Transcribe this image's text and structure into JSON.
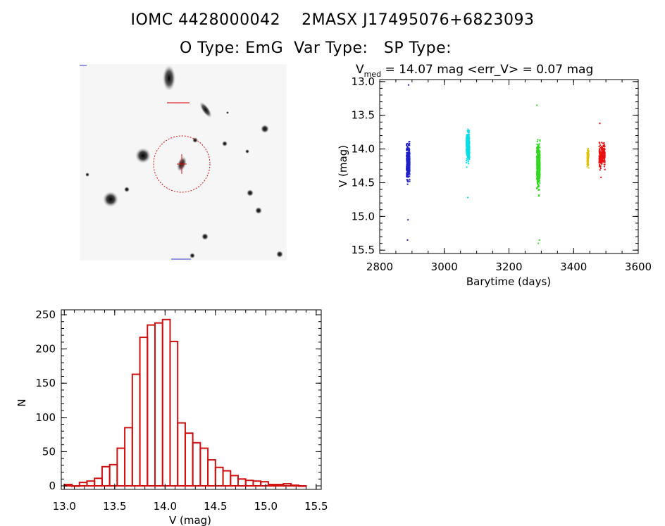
{
  "header": {
    "title_line1": "IOMC 4428000042    2MASX J17495076+6823093",
    "title_line2": "O Type: EmG  Var Type:   SP Type:"
  },
  "colors": {
    "blue": "#2020c8",
    "cyan": "#00e0e8",
    "green": "#30d820",
    "yellow": "#e0c000",
    "red": "#e81010",
    "hist": "#d01010"
  },
  "chart_data": [
    {
      "type": "scatter",
      "title_parts": {
        "v": "V",
        "sub": "med",
        "rest": " = 14.07 mag <err_V> = 0.07 mag"
      },
      "xlabel": "Barytime (days)",
      "ylabel": "V (mag)",
      "xlim": [
        2800,
        3600
      ],
      "ylim": [
        15.55,
        12.97
      ],
      "xticks": [
        "2800",
        "3000",
        "3200",
        "3400",
        "3600"
      ],
      "yticks": [
        "13.0",
        "13.5",
        "14.0",
        "14.5",
        "15.0",
        "15.5"
      ],
      "series": [
        {
          "color": "#2020c8",
          "x_range": [
            2883,
            2893
          ],
          "center": 14.2,
          "spread": 0.22,
          "n": 320,
          "extremes": [
            13.05,
            15.05,
            15.35
          ]
        },
        {
          "color": "#00e0e8",
          "x_range": [
            3068,
            3078
          ],
          "center": 13.95,
          "spread": 0.2,
          "n": 260,
          "extremes": [
            14.72
          ]
        },
        {
          "color": "#30d820",
          "x_range": [
            3286,
            3296
          ],
          "center": 14.25,
          "spread": 0.28,
          "n": 360,
          "extremes": [
            13.35,
            15.35,
            15.4
          ]
        },
        {
          "color": "#e0c000",
          "x_range": [
            3442,
            3447
          ],
          "center": 14.12,
          "spread": 0.12,
          "n": 60,
          "extremes": []
        },
        {
          "color": "#e81010",
          "x_range": [
            3479,
            3497
          ],
          "center": 14.1,
          "spread": 0.14,
          "n": 220,
          "extremes": [
            13.62,
            14.42
          ]
        }
      ]
    },
    {
      "type": "bar",
      "xlabel": "V (mag)",
      "ylabel": "N",
      "xlim": [
        12.97,
        15.55
      ],
      "ylim": [
        0,
        255
      ],
      "xticks": [
        "13.0",
        "13.5",
        "14.0",
        "14.5",
        "15.0",
        "15.5"
      ],
      "yticks": [
        "0",
        "50",
        "100",
        "150",
        "200",
        "250"
      ],
      "bin_start": 13.0,
      "bin_width": 0.075,
      "values": [
        2,
        0,
        5,
        7,
        11,
        28,
        31,
        55,
        85,
        163,
        217,
        235,
        238,
        243,
        211,
        92,
        77,
        63,
        55,
        38,
        27,
        22,
        15,
        10,
        8,
        7,
        6,
        2,
        2,
        3,
        1,
        0
      ]
    }
  ]
}
